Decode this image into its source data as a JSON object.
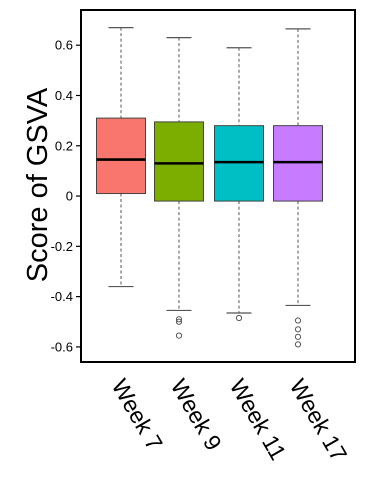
{
  "chart_data": {
    "type": "box",
    "title": "",
    "xlabel": "",
    "ylabel": "Score of GSVA",
    "ylim": [
      -0.66,
      0.74
    ],
    "yticks": [
      {
        "value": 0.6,
        "label": "0.6"
      },
      {
        "value": 0.4,
        "label": "0.4"
      },
      {
        "value": 0.2,
        "label": "0.2"
      },
      {
        "value": 0.0,
        "label": "0"
      },
      {
        "value": -0.2,
        "label": "-0.2"
      },
      {
        "value": -0.4,
        "label": "-0.4"
      },
      {
        "value": -0.6,
        "label": "-0.6"
      }
    ],
    "categories": [
      "Week 7",
      "Week 9",
      "Week 11",
      "Week 17"
    ],
    "boxes": [
      {
        "category": "Week 7",
        "whisker_low": -0.36,
        "q1": 0.01,
        "median": 0.145,
        "q3": 0.31,
        "whisker_high": 0.67,
        "outliers": [],
        "color": "#f8766d"
      },
      {
        "category": "Week 9",
        "whisker_low": -0.455,
        "q1": -0.02,
        "median": 0.13,
        "q3": 0.295,
        "whisker_high": 0.63,
        "outliers": [
          -0.49,
          -0.5,
          -0.555
        ],
        "color": "#7cae00"
      },
      {
        "category": "Week 11",
        "whisker_low": -0.465,
        "q1": -0.02,
        "median": 0.135,
        "q3": 0.28,
        "whisker_high": 0.59,
        "outliers": [
          -0.485
        ],
        "color": "#00bfc4"
      },
      {
        "category": "Week 17",
        "whisker_low": -0.435,
        "q1": -0.02,
        "median": 0.135,
        "q3": 0.28,
        "whisker_high": 0.665,
        "outliers": [
          -0.495,
          -0.53,
          -0.56,
          -0.59
        ],
        "color": "#c77cff"
      }
    ],
    "grid": false,
    "legend": "none"
  }
}
